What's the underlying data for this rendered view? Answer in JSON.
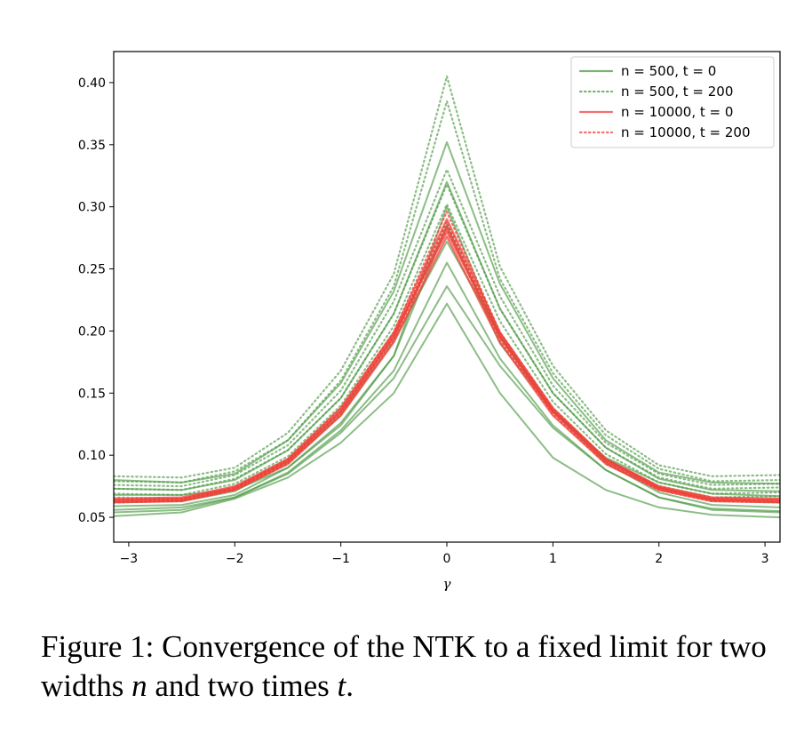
{
  "chart_data": {
    "type": "line",
    "xlabel": "γ",
    "ylabel": "",
    "xlim": [
      -3.1416,
      3.1416
    ],
    "ylim": [
      0.03,
      0.425
    ],
    "xticks": [
      -3,
      -2,
      -1,
      0,
      1,
      2,
      3
    ],
    "xtick_labels": [
      "−3",
      "−2",
      "−1",
      "0",
      "1",
      "2",
      "3"
    ],
    "yticks": [
      0.05,
      0.1,
      0.15,
      0.2,
      0.25,
      0.3,
      0.35,
      0.4
    ],
    "ytick_labels": [
      "0.05",
      "0.10",
      "0.15",
      "0.20",
      "0.25",
      "0.30",
      "0.35",
      "0.40"
    ],
    "legend": {
      "placement": "top-right"
    },
    "colors": {
      "n500": "#4f9a45",
      "n10000": "#f0403a"
    },
    "series": [
      {
        "name": "n = 500, t = 0",
        "color": "#4f9a45",
        "style": "solid",
        "legend": true,
        "x": [
          -3.14,
          -2.5,
          -2,
          -1.5,
          -1,
          -0.5,
          0,
          0.5,
          1,
          1.5,
          2,
          2.5,
          3.14
        ],
        "y": [
          0.068,
          0.068,
          0.072,
          0.09,
          0.124,
          0.18,
          0.285,
          0.19,
          0.135,
          0.098,
          0.078,
          0.069,
          0.067
        ]
      },
      {
        "name": "n = 500, t = 200",
        "color": "#4f9a45",
        "style": "dotted",
        "legend": true,
        "x": [
          -3.14,
          -2.5,
          -2,
          -1.5,
          -1,
          -0.5,
          0,
          0.5,
          1,
          1.5,
          2,
          2.5,
          3.14
        ],
        "y": [
          0.083,
          0.082,
          0.09,
          0.118,
          0.168,
          0.246,
          0.405,
          0.252,
          0.172,
          0.12,
          0.092,
          0.083,
          0.084
        ]
      },
      {
        "name": "n = 10000, t = 0",
        "color": "#f0403a",
        "style": "solid",
        "legend": true,
        "x": [
          -3.14,
          -2.5,
          -2,
          -1.5,
          -1,
          -0.5,
          0,
          0.5,
          1,
          1.5,
          2,
          2.5,
          3.14
        ],
        "y": [
          0.063,
          0.064,
          0.073,
          0.095,
          0.135,
          0.195,
          0.284,
          0.195,
          0.135,
          0.095,
          0.073,
          0.064,
          0.063
        ]
      },
      {
        "name": "n = 10000, t = 200",
        "color": "#f0403a",
        "style": "dotted",
        "legend": true,
        "x": [
          -3.14,
          -2.5,
          -2,
          -1.5,
          -1,
          -0.5,
          0,
          0.5,
          1,
          1.5,
          2,
          2.5,
          3.14
        ],
        "y": [
          0.064,
          0.065,
          0.074,
          0.097,
          0.138,
          0.199,
          0.296,
          0.199,
          0.138,
          0.097,
          0.074,
          0.065,
          0.064
        ]
      },
      {
        "color": "#4f9a45",
        "style": "solid",
        "legend": false,
        "x": [
          -3.14,
          -2.5,
          -2,
          -1.5,
          -1,
          -0.5,
          0,
          0.5,
          1,
          1.5,
          2,
          2.5,
          3.14
        ],
        "y": [
          0.08,
          0.078,
          0.085,
          0.112,
          0.158,
          0.232,
          0.352,
          0.238,
          0.162,
          0.112,
          0.086,
          0.078,
          0.077
        ]
      },
      {
        "color": "#4f9a45",
        "style": "solid",
        "legend": false,
        "x": [
          -3.14,
          -2.5,
          -2,
          -1.5,
          -1,
          -0.5,
          0,
          0.5,
          1,
          1.5,
          2,
          2.5,
          3.14
        ],
        "y": [
          0.073,
          0.072,
          0.08,
          0.104,
          0.146,
          0.214,
          0.32,
          0.218,
          0.15,
          0.106,
          0.081,
          0.072,
          0.071
        ]
      },
      {
        "color": "#4f9a45",
        "style": "solid",
        "legend": false,
        "x": [
          -3.14,
          -2.5,
          -2,
          -1.5,
          -1,
          -0.5,
          0,
          0.5,
          1,
          1.5,
          2,
          2.5,
          3.14
        ],
        "y": [
          0.059,
          0.06,
          0.068,
          0.09,
          0.126,
          0.18,
          0.3,
          0.195,
          0.135,
          0.094,
          0.07,
          0.06,
          0.058
        ]
      },
      {
        "color": "#4f9a45",
        "style": "solid",
        "legend": false,
        "x": [
          -3.14,
          -2.5,
          -2,
          -1.5,
          -1,
          -0.5,
          0,
          0.5,
          1,
          1.5,
          2,
          2.5,
          3.14
        ],
        "y": [
          0.056,
          0.058,
          0.066,
          0.086,
          0.12,
          0.168,
          0.255,
          0.178,
          0.124,
          0.088,
          0.066,
          0.057,
          0.055
        ]
      },
      {
        "color": "#4f9a45",
        "style": "solid",
        "legend": false,
        "x": [
          -3.14,
          -2.5,
          -2,
          -1.5,
          -1,
          -0.5,
          0,
          0.5,
          1,
          1.5,
          2,
          2.5,
          3.14
        ],
        "y": [
          0.054,
          0.056,
          0.066,
          0.085,
          0.118,
          0.162,
          0.236,
          0.172,
          0.122,
          0.088,
          0.066,
          0.056,
          0.054
        ]
      },
      {
        "color": "#4f9a45",
        "style": "solid",
        "legend": false,
        "x": [
          -3.14,
          -2.5,
          -2,
          -1.5,
          -1,
          -0.5,
          0,
          0.5,
          1,
          1.5,
          2,
          2.5,
          3.14
        ],
        "y": [
          0.051,
          0.054,
          0.065,
          0.082,
          0.11,
          0.15,
          0.222,
          0.15,
          0.098,
          0.072,
          0.058,
          0.052,
          0.05
        ]
      },
      {
        "color": "#4f9a45",
        "style": "solid",
        "legend": false,
        "x": [
          -3.14,
          -2.5,
          -2,
          -1.5,
          -1,
          -0.5,
          0,
          0.5,
          1,
          1.5,
          2,
          2.5,
          3.14
        ],
        "y": [
          0.062,
          0.063,
          0.071,
          0.094,
          0.132,
          0.192,
          0.272,
          0.196,
          0.136,
          0.097,
          0.074,
          0.064,
          0.062
        ]
      },
      {
        "color": "#4f9a45",
        "style": "dotted",
        "legend": false,
        "x": [
          -3.14,
          -2.5,
          -2,
          -1.5,
          -1,
          -0.5,
          0,
          0.5,
          1,
          1.5,
          2,
          2.5,
          3.14
        ],
        "y": [
          0.079,
          0.078,
          0.087,
          0.112,
          0.16,
          0.236,
          0.385,
          0.242,
          0.166,
          0.116,
          0.089,
          0.079,
          0.08
        ]
      },
      {
        "color": "#4f9a45",
        "style": "dotted",
        "legend": false,
        "x": [
          -3.14,
          -2.5,
          -2,
          -1.5,
          -1,
          -0.5,
          0,
          0.5,
          1,
          1.5,
          2,
          2.5,
          3.14
        ],
        "y": [
          0.076,
          0.075,
          0.084,
          0.108,
          0.152,
          0.224,
          0.33,
          0.228,
          0.156,
          0.11,
          0.085,
          0.076,
          0.077
        ]
      },
      {
        "color": "#4f9a45",
        "style": "dotted",
        "legend": false,
        "x": [
          -3.14,
          -2.5,
          -2,
          -1.5,
          -1,
          -0.5,
          0,
          0.5,
          1,
          1.5,
          2,
          2.5,
          3.14
        ],
        "y": [
          0.073,
          0.072,
          0.081,
          0.104,
          0.146,
          0.214,
          0.318,
          0.218,
          0.15,
          0.106,
          0.082,
          0.073,
          0.074
        ]
      },
      {
        "color": "#4f9a45",
        "style": "dotted",
        "legend": false,
        "x": [
          -3.14,
          -2.5,
          -2,
          -1.5,
          -1,
          -0.5,
          0,
          0.5,
          1,
          1.5,
          2,
          2.5,
          3.14
        ],
        "y": [
          0.069,
          0.068,
          0.077,
          0.099,
          0.14,
          0.204,
          0.302,
          0.208,
          0.143,
          0.101,
          0.078,
          0.069,
          0.07
        ]
      },
      {
        "color": "#4f9a45",
        "style": "dotted",
        "legend": false,
        "x": [
          -3.14,
          -2.5,
          -2,
          -1.5,
          -1,
          -0.5,
          0,
          0.5,
          1,
          1.5,
          2,
          2.5,
          3.14
        ],
        "y": [
          0.066,
          0.065,
          0.074,
          0.095,
          0.134,
          0.195,
          0.286,
          0.198,
          0.137,
          0.097,
          0.075,
          0.066,
          0.067
        ]
      },
      {
        "color": "#f0403a",
        "style": "solid",
        "legend": false,
        "x": [
          -3.14,
          -2.5,
          -2,
          -1.5,
          -1,
          -0.5,
          0,
          0.5,
          1,
          1.5,
          2,
          2.5,
          3.14
        ],
        "y": [
          0.062,
          0.063,
          0.072,
          0.093,
          0.132,
          0.191,
          0.276,
          0.191,
          0.132,
          0.093,
          0.072,
          0.063,
          0.062
        ]
      },
      {
        "color": "#f0403a",
        "style": "solid",
        "legend": false,
        "x": [
          -3.14,
          -2.5,
          -2,
          -1.5,
          -1,
          -0.5,
          0,
          0.5,
          1,
          1.5,
          2,
          2.5,
          3.14
        ],
        "y": [
          0.065,
          0.066,
          0.075,
          0.097,
          0.138,
          0.199,
          0.29,
          0.199,
          0.138,
          0.097,
          0.075,
          0.066,
          0.065
        ]
      },
      {
        "color": "#f0403a",
        "style": "solid",
        "legend": false,
        "x": [
          -3.14,
          -2.5,
          -2,
          -1.5,
          -1,
          -0.5,
          0,
          0.5,
          1,
          1.5,
          2,
          2.5,
          3.14
        ],
        "y": [
          0.064,
          0.065,
          0.074,
          0.096,
          0.136,
          0.197,
          0.28,
          0.197,
          0.136,
          0.096,
          0.074,
          0.065,
          0.064
        ]
      },
      {
        "color": "#f0403a",
        "style": "dotted",
        "legend": false,
        "x": [
          -3.14,
          -2.5,
          -2,
          -1.5,
          -1,
          -0.5,
          0,
          0.5,
          1,
          1.5,
          2,
          2.5,
          3.14
        ],
        "y": [
          0.063,
          0.064,
          0.073,
          0.095,
          0.135,
          0.196,
          0.288,
          0.196,
          0.135,
          0.095,
          0.073,
          0.064,
          0.063
        ]
      },
      {
        "color": "#f0403a",
        "style": "dotted",
        "legend": false,
        "x": [
          -3.14,
          -2.5,
          -2,
          -1.5,
          -1,
          -0.5,
          0,
          0.5,
          1,
          1.5,
          2,
          2.5,
          3.14
        ],
        "y": [
          0.062,
          0.063,
          0.072,
          0.093,
          0.133,
          0.193,
          0.282,
          0.193,
          0.133,
          0.093,
          0.072,
          0.063,
          0.062
        ]
      }
    ]
  },
  "caption": {
    "prefix": "Figure 1: Convergence of the NTK to a fixed limit for two widths ",
    "var_n": "n",
    "middle": " and two times ",
    "var_t": "t",
    "suffix": "."
  }
}
